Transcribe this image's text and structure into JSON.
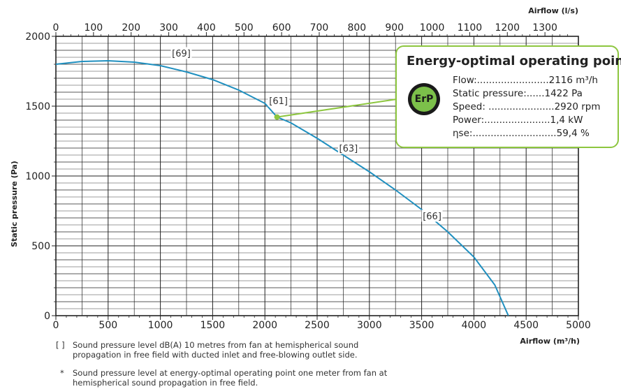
{
  "chart_data": {
    "type": "line",
    "xlabel": "Airflow (m³/h)",
    "x2label": "Airflow (l/s)",
    "ylabel": "Static pressure (Pa)",
    "xlim": [
      0,
      5000
    ],
    "x2lim": [
      0,
      1388.9
    ],
    "ylim": [
      0,
      2000
    ],
    "grid": true,
    "x_ticks": [
      0,
      500,
      1000,
      1500,
      2000,
      2500,
      3000,
      3500,
      4000,
      4500,
      5000
    ],
    "x2_ticks": [
      0,
      100,
      200,
      300,
      400,
      500,
      600,
      700,
      800,
      900,
      1000,
      1100,
      1200,
      1300
    ],
    "y_ticks": [
      0,
      500,
      1000,
      1500,
      2000
    ],
    "series": [
      {
        "color": "#1f8fbf",
        "x": [
          0,
          250,
          500,
          750,
          1000,
          1250,
          1500,
          1750,
          2000,
          2116,
          2250,
          2500,
          2750,
          3000,
          3250,
          3500,
          3750,
          4000,
          4200,
          4330
        ],
        "y": [
          1800,
          1820,
          1825,
          1815,
          1790,
          1745,
          1690,
          1615,
          1520,
          1422,
          1380,
          1270,
          1150,
          1030,
          900,
          760,
          600,
          420,
          220,
          0
        ]
      }
    ],
    "annotations": [
      {
        "text": "[69]",
        "x": 1200,
        "y": 1880
      },
      {
        "text": "[61]",
        "x": 2130,
        "y": 1540
      },
      {
        "text": "[63]",
        "x": 2800,
        "y": 1200
      },
      {
        "text": "[66]",
        "x": 3600,
        "y": 715
      }
    ],
    "operating_point": {
      "x": 2116,
      "y": 1422
    }
  },
  "erp": {
    "title": "Energy-optimal operating point",
    "logo_text": "ErP",
    "rows": [
      {
        "label": "Flow:........................",
        "value": "2116 m³/h"
      },
      {
        "label": "Static pressure:......",
        "value": "1422 Pa"
      },
      {
        "label": "Speed: ......................",
        "value": "2920 rpm"
      },
      {
        "label": "Power:......................",
        "value": "1,4 kW"
      },
      {
        "label": "ηse:............................",
        "value": "59,4 %"
      }
    ]
  },
  "footnotes": [
    {
      "mark": "[ ]",
      "text": "Sound pressure level dB(A) 10 metres from fan at hemispherical sound propagation in free field with ducted inlet and free-blowing outlet side."
    },
    {
      "mark": "*",
      "text": "Sound pressure level at energy-optimal operating point one meter from fan at hemispherical sound propagation in free field."
    }
  ],
  "colors": {
    "curve": "#1f8fbf",
    "erp_green": "#8dc63f",
    "grid": "#222222"
  }
}
